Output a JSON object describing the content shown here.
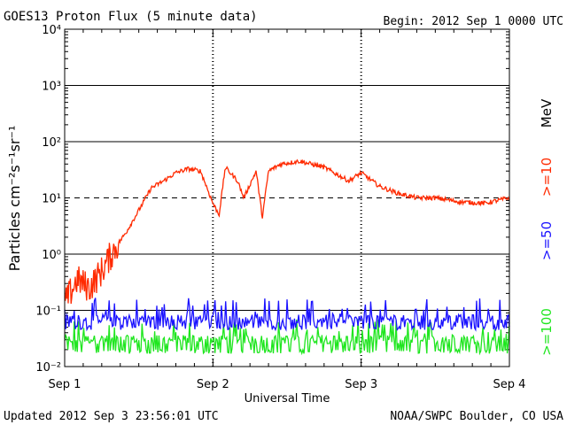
{
  "header": {
    "title": "GOES13 Proton Flux (5 minute data)",
    "begin": "Begin: 2012 Sep 1 0000 UTC"
  },
  "footer": {
    "updated": "Updated 2012 Sep  3 23:56:01 UTC",
    "source": "NOAA/SWPC Boulder, CO USA"
  },
  "chart_data": {
    "type": "line",
    "title": "GOES13 Proton Flux (5 minute data)",
    "xlabel": "Universal Time",
    "ylabel": "Particles cm⁻²s⁻¹sr⁻¹",
    "y_scale": "log",
    "ylim": [
      0.01,
      10000
    ],
    "xlim": [
      "2012-09-01 00:00",
      "2012-09-04 00:00"
    ],
    "x_ticks": [
      "Sep 1",
      "Sep 2",
      "Sep 3",
      "Sep 4"
    ],
    "y_ticks": [
      "10⁻²",
      "10⁻¹",
      "10⁰",
      "10¹",
      "10²",
      "10³",
      "10⁴"
    ],
    "reference_line": 10,
    "right_labels": [
      {
        "text": ">=10",
        "color": "#ff2a00"
      },
      {
        "text": "MeV",
        "color": "#000000"
      },
      {
        "text": ">=50",
        "color": "#1a12ff"
      },
      {
        "text": ">=100",
        "color": "#1fe61f"
      }
    ],
    "series": [
      {
        "name": ">=10 MeV",
        "color": "#ff2a00",
        "points": [
          [
            "2012-09-01 00:00",
            0.13
          ],
          [
            "2012-09-01 02:00",
            0.35
          ],
          [
            "2012-09-01 04:00",
            0.25
          ],
          [
            "2012-09-01 06:00",
            0.5
          ],
          [
            "2012-09-01 08:00",
            1.2
          ],
          [
            "2012-09-01 10:00",
            2.5
          ],
          [
            "2012-09-01 12:00",
            6
          ],
          [
            "2012-09-01 14:00",
            15
          ],
          [
            "2012-09-01 16:00",
            20
          ],
          [
            "2012-09-01 18:00",
            28
          ],
          [
            "2012-09-01 20:00",
            33
          ],
          [
            "2012-09-01 22:00",
            30
          ],
          [
            "2012-09-02 00:00",
            8
          ],
          [
            "2012-09-02 01:00",
            5
          ],
          [
            "2012-09-02 02:00",
            35
          ],
          [
            "2012-09-02 04:00",
            20
          ],
          [
            "2012-09-02 05:00",
            10
          ],
          [
            "2012-09-02 07:00",
            30
          ],
          [
            "2012-09-02 08:00",
            4.5
          ],
          [
            "2012-09-02 09:00",
            30
          ],
          [
            "2012-09-02 11:00",
            40
          ],
          [
            "2012-09-02 14:00",
            45
          ],
          [
            "2012-09-02 18:00",
            35
          ],
          [
            "2012-09-02 22:00",
            20
          ],
          [
            "2012-09-03 00:00",
            28
          ],
          [
            "2012-09-03 03:00",
            16
          ],
          [
            "2012-09-03 06:00",
            12
          ],
          [
            "2012-09-03 09:00",
            10
          ],
          [
            "2012-09-03 12:00",
            10
          ],
          [
            "2012-09-03 16:00",
            8.5
          ],
          [
            "2012-09-03 20:00",
            8
          ],
          [
            "2012-09-04 00:00",
            10
          ]
        ]
      },
      {
        "name": ">=50 MeV",
        "color": "#1a12ff",
        "baseline": 0.07,
        "low": 0.045,
        "high": 0.17
      },
      {
        "name": ">=100 MeV",
        "color": "#1fe61f",
        "baseline": 0.03,
        "low": 0.017,
        "high": 0.07
      }
    ]
  }
}
